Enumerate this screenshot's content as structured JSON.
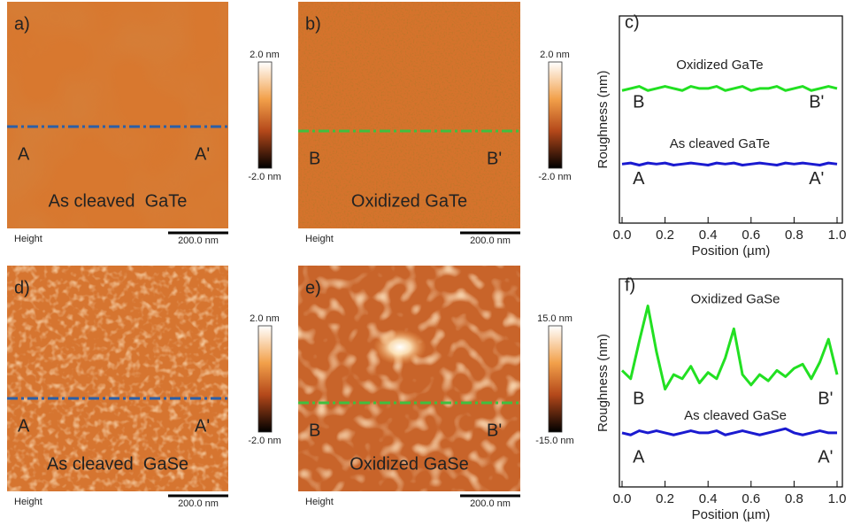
{
  "panels": [
    {
      "label": "a)",
      "caption": "As cleaved  GaTe",
      "markers": [
        "A",
        "A'"
      ],
      "height_label": "Height",
      "scale_bar": "200.0 nm",
      "colorbar": {
        "max": "2.0 nm",
        "min": "-2.0 nm"
      }
    },
    {
      "label": "b)",
      "caption": "Oxidized GaTe",
      "markers": [
        "B",
        "B'"
      ],
      "height_label": "Height",
      "scale_bar": "200.0 nm",
      "colorbar": {
        "max": "2.0 nm",
        "min": "-2.0 nm"
      }
    },
    {
      "label": "d)",
      "caption": "As cleaved  GaSe",
      "markers": [
        "A",
        "A'"
      ],
      "height_label": "Height",
      "scale_bar": "200.0 nm",
      "colorbar": {
        "max": "2.0 nm",
        "min": "-2.0 nm"
      }
    },
    {
      "label": "e)",
      "caption": "Oxidized GaSe",
      "markers": [
        "B",
        "B'"
      ],
      "height_label": "Height",
      "scale_bar": "200.0 nm",
      "colorbar": {
        "max": "15.0 nm",
        "min": "-15.0 nm"
      }
    }
  ],
  "chart_data": [
    {
      "type": "line",
      "label": "c)",
      "xlabel": "Position (µm)",
      "ylabel": "Roughness (nm)",
      "xlim": [
        0,
        1
      ],
      "ylim": [
        0,
        10
      ],
      "xticks": [
        {
          "value": 0,
          "label": "0.0"
        },
        {
          "value": 0.2,
          "label": "0.2"
        },
        {
          "value": 0.4,
          "label": "0.4"
        },
        {
          "value": 0.6,
          "label": "0.6"
        },
        {
          "value": 0.8,
          "label": "0.8"
        },
        {
          "value": 1,
          "label": "1.0"
        }
      ],
      "x": [
        0,
        0.04,
        0.08,
        0.12,
        0.16,
        0.2,
        0.24,
        0.28,
        0.32,
        0.36,
        0.4,
        0.44,
        0.48,
        0.52,
        0.56,
        0.6,
        0.64,
        0.68,
        0.72,
        0.76,
        0.8,
        0.84,
        0.88,
        0.92,
        0.96,
        1
      ],
      "series": [
        {
          "name": "Oxidized GaTe",
          "color": "#22e022",
          "values": [
            6.4,
            6.5,
            6.6,
            6.4,
            6.5,
            6.6,
            6.5,
            6.4,
            6.6,
            6.5,
            6.5,
            6.6,
            6.4,
            6.5,
            6.6,
            6.4,
            6.5,
            6.5,
            6.6,
            6.4,
            6.5,
            6.6,
            6.4,
            6.5,
            6.6,
            6.5
          ]
        },
        {
          "name": "As cleaved GaTe",
          "color": "#1a1ad0",
          "values": [
            2.85,
            2.9,
            2.8,
            2.9,
            2.85,
            2.9,
            2.8,
            2.85,
            2.9,
            2.85,
            2.8,
            2.9,
            2.85,
            2.9,
            2.8,
            2.85,
            2.9,
            2.85,
            2.8,
            2.9,
            2.85,
            2.9,
            2.85,
            2.8,
            2.9,
            2.85
          ]
        }
      ],
      "annotations": [
        "B",
        "B'",
        "A",
        "A'"
      ]
    },
    {
      "type": "line",
      "label": "f)",
      "xlabel": "Position (µm)",
      "ylabel": "Roughness (nm)",
      "xlim": [
        0,
        1
      ],
      "ylim": [
        0,
        10
      ],
      "xticks": [
        {
          "value": 0,
          "label": "0.0"
        },
        {
          "value": 0.2,
          "label": "0.2"
        },
        {
          "value": 0.4,
          "label": "0.4"
        },
        {
          "value": 0.6,
          "label": "0.6"
        },
        {
          "value": 0.8,
          "label": "0.8"
        },
        {
          "value": 1,
          "label": "1.0"
        }
      ],
      "x": [
        0,
        0.04,
        0.08,
        0.12,
        0.16,
        0.2,
        0.24,
        0.28,
        0.32,
        0.36,
        0.4,
        0.44,
        0.48,
        0.52,
        0.56,
        0.6,
        0.64,
        0.68,
        0.72,
        0.76,
        0.8,
        0.84,
        0.88,
        0.92,
        0.96,
        1
      ],
      "series": [
        {
          "name": "Oxidized GaSe",
          "color": "#22e022",
          "values": [
            5.6,
            5.2,
            7.0,
            8.7,
            6.5,
            4.7,
            5.4,
            5.2,
            5.8,
            5.0,
            5.5,
            5.2,
            6.2,
            7.6,
            5.4,
            4.9,
            5.4,
            5.1,
            5.6,
            5.3,
            5.7,
            5.9,
            5.2,
            6.0,
            7.1,
            5.4
          ]
        },
        {
          "name": "As cleaved GaSe",
          "color": "#1a1ad0",
          "values": [
            2.6,
            2.5,
            2.7,
            2.6,
            2.7,
            2.6,
            2.5,
            2.6,
            2.7,
            2.6,
            2.6,
            2.7,
            2.5,
            2.6,
            2.7,
            2.6,
            2.5,
            2.6,
            2.7,
            2.8,
            2.6,
            2.5,
            2.6,
            2.7,
            2.6,
            2.6
          ]
        }
      ],
      "annotations": [
        "B",
        "B'",
        "A",
        "A'"
      ]
    }
  ]
}
